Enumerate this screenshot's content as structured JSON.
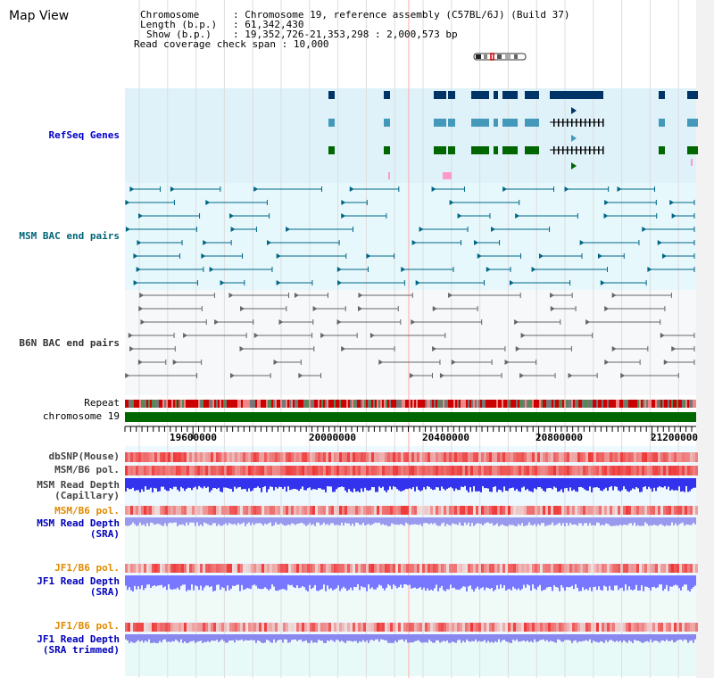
{
  "page": {
    "title": "Map View"
  },
  "info": {
    "chromosome_label": "Chromosome",
    "chromosome_value": ": Chromosome 19, reference assembly (C57BL/6J) (Build 37)",
    "length_label": "Length (b.p.)",
    "length_value": ": 61,342,430",
    "show_label": "Show (b.p.)",
    "show_value": ": 19,352,726-21,353,298 : 2,000,573 bp",
    "coverage_label": "Read coverage check span",
    "coverage_value": ": 10,000"
  },
  "tracks": {
    "refseq": "RefSeq Genes",
    "msm_bac": "MSM BAC end pairs",
    "b6n_bac": "B6N BAC end pairs",
    "repeat": "Repeat",
    "chromosome": "chromosome 19",
    "dbsnp": "dbSNP(Mouse)",
    "msm_b6_pol_1": "MSM/B6 pol.",
    "msm_depth_cap_1": "MSM Read Depth",
    "msm_depth_cap_2": "(Capillary)",
    "msm_b6_pol_2": "MSM/B6 pol.",
    "msm_depth_sra_1": "MSM Read Depth",
    "msm_depth_sra_2": "(SRA)",
    "jf1_b6_pol_1": "JF1/B6 pol.",
    "jf1_depth_sra_1": "JF1 Read Depth",
    "jf1_depth_sra_2": "(SRA)",
    "jf1_b6_pol_2": "JF1/B6 pol.",
    "jf1_trim_1": "JF1 Read Depth",
    "jf1_trim_2": "(SRA trimmed)"
  },
  "axis": {
    "ticks": [
      "19600000",
      "20000000",
      "20400000",
      "20800000",
      "21200000"
    ]
  },
  "colors": {
    "refseq_bg": "#dff2fa",
    "msm_bg": "#e6f8fb",
    "b6n_bg": "#f7f8fa",
    "lower_bg": "#f0faf6",
    "gene_dark": "#003366",
    "gene_mid": "#4499bb",
    "gene_green": "#006600",
    "chrom_green": "#006600",
    "bac_teal": "#006688",
    "bac_grey": "#666666",
    "snp_red": "#ee3333",
    "depth_blue": "#3333ee",
    "depth_light": "#7777ff"
  }
}
